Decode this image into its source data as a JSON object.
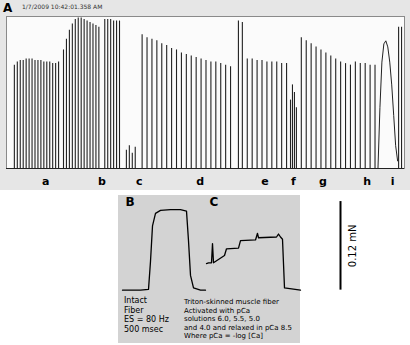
{
  "chart_data": [
    {
      "type": "bar",
      "title": "A",
      "header": "1/7/2009 10:42:01.358 AM",
      "color": "#222222",
      "tick_labels": false,
      "xlim": [
        0,
        405
      ],
      "ylim": [
        0,
        100
      ],
      "x": [
        8,
        11,
        14,
        17,
        20,
        23,
        26,
        29,
        32,
        35,
        38,
        41,
        44,
        47,
        50,
        53,
        58,
        61,
        64,
        67,
        70,
        73,
        76,
        79,
        82,
        85,
        88,
        91,
        94,
        100,
        103,
        106,
        109,
        112,
        115,
        122,
        125,
        128,
        131,
        138,
        143,
        148,
        153,
        158,
        163,
        168,
        173,
        178,
        183,
        188,
        193,
        198,
        203,
        208,
        213,
        218,
        223,
        228,
        236,
        240,
        245,
        250,
        255,
        260,
        265,
        270,
        275,
        280,
        285,
        289,
        291,
        293,
        295,
        300,
        305,
        310,
        315,
        320,
        325,
        330,
        335,
        340,
        345,
        350,
        355,
        360,
        365,
        370,
        375,
        399,
        402
      ],
      "values": [
        68,
        70,
        71,
        71,
        72,
        72,
        72,
        71,
        71,
        71,
        70,
        70,
        70,
        69,
        69,
        70,
        78,
        85,
        91,
        95,
        98,
        99,
        99,
        98,
        97,
        96,
        95,
        94,
        93,
        98,
        98,
        98,
        97,
        97,
        97,
        12,
        15,
        10,
        14,
        88,
        86,
        85,
        84,
        82,
        81,
        79,
        78,
        76,
        75,
        74,
        73,
        72,
        71,
        70,
        70,
        69,
        68,
        67,
        97,
        96,
        72,
        72,
        71,
        71,
        70,
        70,
        70,
        69,
        69,
        45,
        55,
        50,
        40,
        86,
        84,
        82,
        80,
        78,
        76,
        74,
        72,
        70,
        69,
        68,
        70,
        69,
        69,
        68,
        68,
        93,
        93
      ],
      "line": {
        "x": [
          378,
          380,
          382,
          384,
          386,
          388,
          390,
          392,
          394,
          396,
          398
        ],
        "values": [
          0,
          40,
          70,
          82,
          84,
          80,
          70,
          55,
          35,
          15,
          5
        ]
      },
      "annotations": [
        {
          "x": 40,
          "text": "a"
        },
        {
          "x": 97,
          "text": "b"
        },
        {
          "x": 135,
          "text": "c"
        },
        {
          "x": 197,
          "text": "d"
        },
        {
          "x": 263,
          "text": "e"
        },
        {
          "x": 292,
          "text": "f"
        },
        {
          "x": 322,
          "text": "g"
        },
        {
          "x": 367,
          "text": "h"
        },
        {
          "x": 393,
          "text": "i"
        }
      ]
    },
    {
      "type": "line",
      "tick_labels": false,
      "xlim": [
        0,
        410
      ],
      "ylim": [
        -0.075,
        0.135
      ],
      "series": [
        {
          "name": "B",
          "color": "#000000",
          "x": [
            122,
            140,
            148,
            150,
            152,
            155,
            160,
            170,
            180,
            186,
            188,
            190,
            193,
            200,
            205
          ],
          "values": [
            0,
            0,
            0.001,
            0.039,
            0.087,
            0.104,
            0.108,
            0.109,
            0.109,
            0.107,
            0.067,
            0.02,
            0.003,
            0,
            0
          ],
          "text": [
            "Intact",
            "Fiber",
            "ES = 80 Hz",
            "500 msec"
          ]
        },
        {
          "name": "C",
          "color": "#000000",
          "x": [
            206,
            208,
            211,
            212,
            213,
            224,
            226,
            238,
            240,
            255,
            257,
            258,
            276,
            278,
            280,
            282,
            284,
            300
          ],
          "values": [
            0.036,
            0.037,
            0.037,
            0.063,
            0.037,
            0.047,
            0.056,
            0.057,
            0.067,
            0.068,
            0.077,
            0.071,
            0.072,
            0.076,
            0.072,
            0.069,
            0.003,
            0
          ],
          "text": [
            "Triton-skinned muscle fiber",
            "Activated with pCa",
            "solutions 6.0, 5.5, 5.0",
            "and 4.0 and relaxed in pCa 8.5",
            "Where pCa = -log [Ca]"
          ]
        }
      ],
      "scale_bar": {
        "value": 0.12,
        "label": "0.12 mN"
      }
    }
  ]
}
